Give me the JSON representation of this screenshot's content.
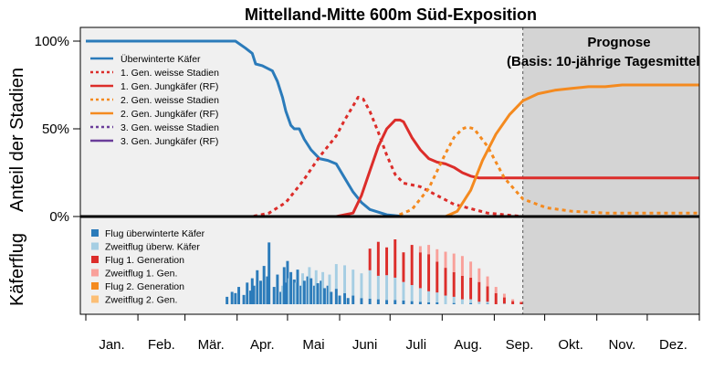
{
  "chart_data": {
    "type": "line",
    "title": "Mittelland-Mitte 600m Süd-Exposition",
    "ylabel_top": "Anteil der Stadien",
    "ylabel_bottom": "Käferflug",
    "y_ticks": [
      "100%",
      "50%",
      "0%"
    ],
    "ylim": [
      0,
      100
    ],
    "months": [
      "Jan.",
      "Feb.",
      "Mär.",
      "Apr.",
      "Mai",
      "Juni",
      "Juli",
      "Aug.",
      "Sep.",
      "Okt.",
      "Nov.",
      "Dez."
    ],
    "x_unit": "day of year",
    "xlim": [
      1,
      366
    ],
    "forecast_start_day": 261,
    "forecast_label_1": "Prognose",
    "forecast_label_2": "(Basis: 10-jährige Tagesmittel)",
    "grid": false,
    "series": [
      {
        "name": "Überwinterte Käfer",
        "color": "#2b7bba",
        "dash": "solid",
        "x": [
          1,
          70,
          80,
          90,
          96,
          100,
          102,
          106,
          112,
          115,
          118,
          120,
          123,
          125,
          128,
          131,
          135,
          140,
          145,
          150,
          155,
          160,
          165,
          170,
          180,
          190,
          261,
          366
        ],
        "y": [
          100,
          100,
          100,
          100,
          96,
          93,
          87,
          86,
          83,
          77,
          68,
          60,
          52,
          50,
          50,
          44,
          38,
          33,
          32,
          30,
          22,
          14,
          8,
          4,
          1,
          0,
          0,
          0
        ]
      },
      {
        "name": "1. Gen. weisse Stadien",
        "color": "#dc2d2a",
        "dash": "dotted",
        "x": [
          1,
          100,
          110,
          120,
          130,
          140,
          150,
          155,
          160,
          163,
          166,
          170,
          175,
          180,
          185,
          190,
          195,
          200,
          210,
          220,
          240,
          261,
          366
        ],
        "y": [
          0,
          0,
          2,
          8,
          20,
          34,
          46,
          55,
          63,
          68,
          67,
          60,
          48,
          35,
          24,
          19,
          18,
          17,
          12,
          7,
          2,
          0,
          0
        ]
      },
      {
        "name": "1. Gen. Jungkäfer (RF)",
        "color": "#dc2d2a",
        "dash": "solid",
        "x": [
          1,
          150,
          160,
          165,
          170,
          175,
          180,
          185,
          188,
          190,
          195,
          200,
          205,
          210,
          215,
          220,
          225,
          230,
          235,
          240,
          261,
          300,
          366
        ],
        "y": [
          0,
          0,
          2,
          12,
          26,
          40,
          50,
          55,
          55,
          54,
          45,
          38,
          33,
          31,
          30,
          28,
          25,
          23,
          22,
          22,
          22,
          22,
          22
        ]
      },
      {
        "name": "2. Gen. weisse Stadien",
        "color": "#f48a1f",
        "dash": "dotted",
        "x": [
          1,
          185,
          195,
          205,
          210,
          215,
          220,
          225,
          228,
          232,
          240,
          250,
          261,
          275,
          290,
          310,
          366
        ],
        "y": [
          0,
          0,
          4,
          16,
          26,
          36,
          45,
          50,
          51,
          50,
          40,
          22,
          10,
          5,
          3,
          2,
          2
        ]
      },
      {
        "name": "2. Gen. Jungkäfer (RF)",
        "color": "#f48a1f",
        "dash": "solid",
        "x": [
          1,
          215,
          222,
          230,
          237,
          245,
          253,
          261,
          270,
          280,
          290,
          300,
          310,
          320,
          330,
          366
        ],
        "y": [
          0,
          0,
          3,
          15,
          32,
          47,
          58,
          66,
          70,
          72,
          73,
          74,
          74,
          75,
          75,
          75
        ]
      },
      {
        "name": "3. Gen. weisse Stadien",
        "color": "#6a3d9a",
        "dash": "dotted",
        "x": [
          1,
          366
        ],
        "y": [
          0,
          0
        ]
      },
      {
        "name": "3. Gen. Jungkäfer (RF)",
        "color": "#6a3d9a",
        "dash": "solid",
        "x": [
          1,
          366
        ],
        "y": [
          0,
          0
        ]
      }
    ],
    "flight": {
      "unit": "relative flight intensity",
      "series": [
        {
          "name": "Flug überwinterte Käfer",
          "color": "#2b7bba",
          "x": [
            85,
            88,
            90,
            92,
            95,
            97,
            99,
            100,
            101,
            103,
            105,
            107,
            109,
            110,
            113,
            115,
            117,
            119,
            120,
            121,
            123,
            125,
            127,
            129,
            131,
            133,
            135,
            137,
            139,
            141,
            143,
            145,
            147,
            150,
            152,
            155,
            157,
            160,
            165,
            170,
            175,
            180,
            185,
            190,
            195,
            200,
            205,
            210,
            220,
            230,
            240
          ],
          "y": [
            12,
            20,
            18,
            28,
            15,
            35,
            22,
            42,
            30,
            55,
            38,
            62,
            45,
            100,
            28,
            48,
            20,
            60,
            35,
            70,
            52,
            40,
            56,
            30,
            38,
            45,
            42,
            30,
            34,
            38,
            26,
            30,
            20,
            25,
            14,
            18,
            10,
            14,
            10,
            9,
            8,
            7,
            7,
            6,
            5,
            4,
            3,
            3,
            2,
            2,
            1
          ]
        },
        {
          "name": "Zweitflug überw. Käfer",
          "color": "#a6cee3",
          "x": [
            118,
            122,
            126,
            130,
            134,
            138,
            142,
            146,
            150,
            155,
            160,
            165,
            170,
            175,
            180,
            185,
            190,
            195,
            200,
            205,
            210,
            215,
            220,
            225,
            230,
            235,
            240,
            250
          ],
          "y": [
            30,
            42,
            35,
            50,
            60,
            55,
            52,
            48,
            40,
            45,
            42,
            40,
            46,
            38,
            40,
            36,
            30,
            26,
            22,
            18,
            16,
            14,
            10,
            8,
            6,
            4,
            3,
            1
          ]
        },
        {
          "name": "Flug 1. Generation",
          "color": "#dc2d2a",
          "x": [
            170,
            175,
            180,
            185,
            190,
            195,
            200,
            205,
            210,
            215,
            220,
            225,
            230,
            235,
            240,
            245,
            250,
            255,
            260
          ],
          "y": [
            35,
            55,
            45,
            62,
            48,
            65,
            58,
            60,
            50,
            45,
            40,
            38,
            35,
            32,
            25,
            18,
            10,
            5,
            3
          ]
        },
        {
          "name": "Zweitflug 1. Gen.",
          "color": "#f9a09a",
          "x": [
            200,
            205,
            210,
            215,
            220,
            225,
            230,
            235,
            240,
            245,
            250,
            255,
            260
          ],
          "y": [
            10,
            15,
            20,
            26,
            30,
            32,
            26,
            22,
            16,
            10,
            6,
            3,
            2
          ]
        },
        {
          "name": "Flug 2. Generation",
          "color": "#f48a1f",
          "x": [],
          "y": []
        },
        {
          "name": "Zweitflug 2. Gen.",
          "color": "#fcbf76",
          "x": [],
          "y": []
        }
      ]
    }
  }
}
